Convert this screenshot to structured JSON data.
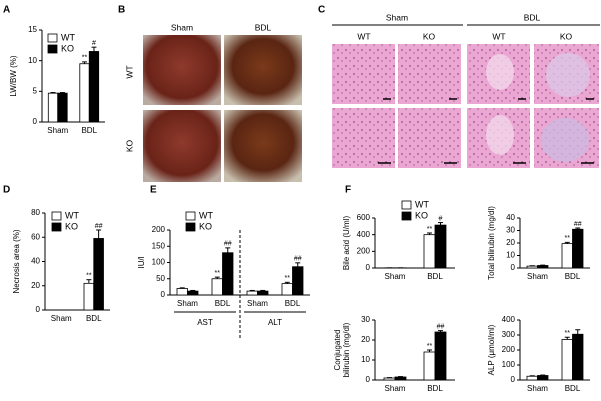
{
  "panel_labels": [
    "A",
    "B",
    "C",
    "D",
    "E",
    "F"
  ],
  "photos": {
    "columns": [
      "Sham",
      "BDL"
    ],
    "rows": [
      "WT",
      "KO"
    ]
  },
  "histology": {
    "groups": [
      "Sham",
      "BDL"
    ],
    "columns": [
      "WT",
      "KO",
      "WT",
      "KO"
    ]
  },
  "chart_data": [
    {
      "type": "bar",
      "ylabel": [
        "LW/BW (%)"
      ],
      "categories": [
        "Sham",
        "BDL"
      ],
      "ylim": [
        0,
        15
      ],
      "yticks": [
        0,
        5,
        10,
        15
      ],
      "legend": true,
      "series": [
        {
          "name": "WT",
          "color": "#ffffff",
          "values": [
            4.7,
            9.5
          ],
          "errors": [
            0.1,
            0.3
          ],
          "marks": [
            null,
            "**"
          ]
        },
        {
          "name": "KO",
          "color": "#000000",
          "values": [
            4.7,
            11.5
          ],
          "errors": [
            0.1,
            0.7
          ],
          "marks": [
            null,
            "#"
          ]
        }
      ]
    },
    {
      "type": "bar",
      "ylabel": [
        "Necrosis area (%)"
      ],
      "categories": [
        "Sham",
        "BDL"
      ],
      "ylim": [
        0,
        80
      ],
      "yticks": [
        0,
        20,
        40,
        60,
        80
      ],
      "legend": true,
      "series": [
        {
          "name": "WT",
          "color": "#ffffff",
          "values": [
            0,
            22
          ],
          "errors": [
            0,
            3
          ],
          "marks": [
            null,
            "**"
          ]
        },
        {
          "name": "KO",
          "color": "#000000",
          "values": [
            0,
            59
          ],
          "errors": [
            0,
            7
          ],
          "marks": [
            null,
            "##"
          ]
        }
      ]
    },
    {
      "type": "bar",
      "ylabel": [
        "IU/l"
      ],
      "categories": [
        "Sham",
        "BDL",
        "Sham",
        "BDL"
      ],
      "groups": [
        "AST",
        "ALT"
      ],
      "ylim": [
        0,
        200
      ],
      "yticks": [
        0,
        50,
        100,
        150,
        200
      ],
      "legend": true,
      "series": [
        {
          "name": "WT",
          "color": "#ffffff",
          "values": [
            20,
            50,
            12,
            35
          ],
          "errors": [
            2,
            5,
            2,
            4
          ],
          "marks": [
            null,
            "**",
            null,
            "**"
          ]
        },
        {
          "name": "KO",
          "color": "#000000",
          "values": [
            12,
            130,
            12,
            87
          ],
          "errors": [
            2,
            15,
            2,
            12
          ],
          "marks": [
            null,
            "##",
            null,
            "##"
          ]
        }
      ]
    },
    {
      "type": "bar",
      "ylabel": [
        "Bile acid (U/ml)"
      ],
      "categories": [
        "Sham",
        "BDL"
      ],
      "ylim": [
        0,
        600
      ],
      "yticks": [
        0,
        200,
        400,
        600
      ],
      "legend": true,
      "series": [
        {
          "name": "WT",
          "color": "#ffffff",
          "values": [
            2,
            400
          ],
          "errors": [
            0,
            20
          ],
          "marks": [
            null,
            "**"
          ]
        },
        {
          "name": "KO",
          "color": "#000000",
          "values": [
            2,
            515
          ],
          "errors": [
            0,
            30
          ],
          "marks": [
            null,
            "#"
          ]
        }
      ]
    },
    {
      "type": "bar",
      "ylabel": [
        "Total bilirubin (mg/dl)"
      ],
      "categories": [
        "Sham",
        "BDL"
      ],
      "ylim": [
        0,
        40
      ],
      "yticks": [
        0,
        10,
        20,
        30,
        40
      ],
      "series": [
        {
          "name": "WT",
          "color": "#ffffff",
          "values": [
            1.5,
            19.5
          ],
          "errors": [
            0.3,
            1
          ],
          "marks": [
            null,
            "**"
          ]
        },
        {
          "name": "KO",
          "color": "#000000",
          "values": [
            2,
            31
          ],
          "errors": [
            0.3,
            1
          ],
          "marks": [
            null,
            "##"
          ]
        }
      ]
    },
    {
      "type": "bar",
      "ylabel": [
        "Conjugated",
        "bilirubin (mg/dl)"
      ],
      "categories": [
        "Sham",
        "BDL"
      ],
      "ylim": [
        0,
        30
      ],
      "yticks": [
        0,
        10,
        20,
        30
      ],
      "series": [
        {
          "name": "WT",
          "color": "#ffffff",
          "values": [
            1,
            14
          ],
          "errors": [
            0.2,
            1
          ],
          "marks": [
            null,
            "**"
          ]
        },
        {
          "name": "KO",
          "color": "#000000",
          "values": [
            1.5,
            24
          ],
          "errors": [
            0.2,
            0.7
          ],
          "marks": [
            null,
            "##"
          ]
        }
      ]
    },
    {
      "type": "bar",
      "ylabel": [
        "ALP (μmol/ml)"
      ],
      "categories": [
        "Sham",
        "BDL"
      ],
      "ylim": [
        0,
        400
      ],
      "yticks": [
        0,
        100,
        200,
        300,
        400
      ],
      "series": [
        {
          "name": "WT",
          "color": "#ffffff",
          "values": [
            25,
            270
          ],
          "errors": [
            3,
            15
          ],
          "marks": [
            null,
            "**"
          ]
        },
        {
          "name": "KO",
          "color": "#000000",
          "values": [
            30,
            305
          ],
          "errors": [
            3,
            30
          ],
          "marks": [
            null,
            null
          ]
        }
      ]
    }
  ]
}
